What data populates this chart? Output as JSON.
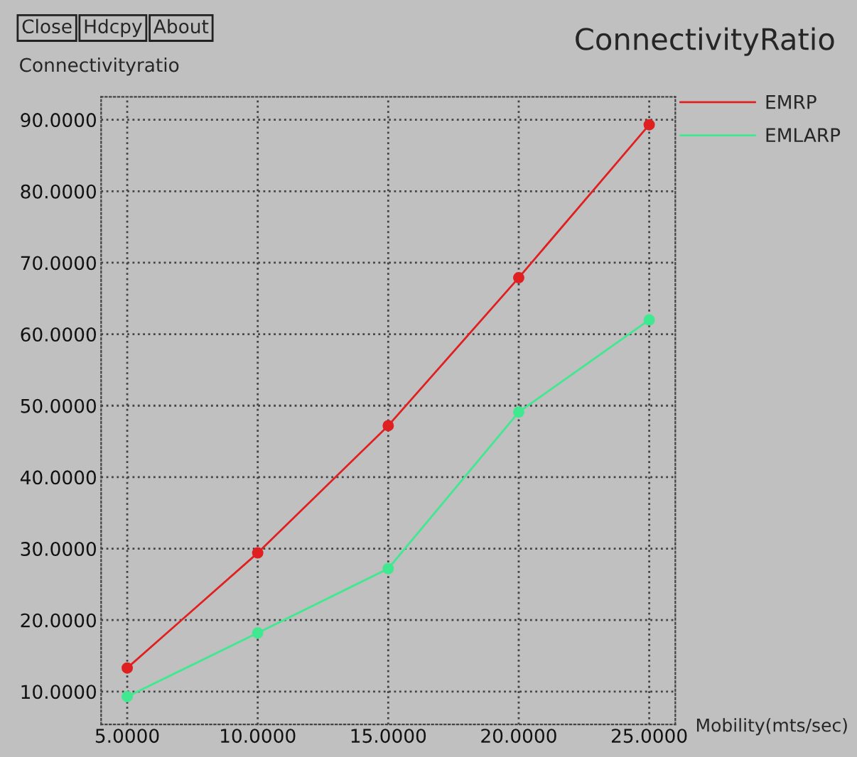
{
  "chart_data": {
    "type": "line",
    "title": "ConnectivityRatio",
    "ylabel": "Connectivityratio",
    "xlabel": "Mobility(mts/sec)",
    "annotations": [
      "Close",
      "Hdcpy",
      "About"
    ],
    "x": [
      5,
      10,
      15,
      20,
      25
    ],
    "series": [
      {
        "name": "EMRP",
        "color": "#e02020",
        "values": [
          13.3,
          29.4,
          47.2,
          67.9,
          89.3
        ]
      },
      {
        "name": "EMLARP",
        "color": "#40e890",
        "values": [
          9.3,
          18.2,
          27.2,
          49.1,
          62.0
        ]
      }
    ],
    "xlim": [
      4.0,
      26.0
    ],
    "ylim": [
      5.4,
      93.2
    ],
    "xticks": [
      {
        "value": 5,
        "label": "5.0000"
      },
      {
        "value": 10,
        "label": "10.0000"
      },
      {
        "value": 15,
        "label": "15.0000"
      },
      {
        "value": 20,
        "label": "20.0000"
      },
      {
        "value": 25,
        "label": "25.0000"
      }
    ],
    "yticks": [
      {
        "value": 10,
        "label": "10.0000"
      },
      {
        "value": 20,
        "label": "20.0000"
      },
      {
        "value": 30,
        "label": "30.0000"
      },
      {
        "value": 40,
        "label": "40.0000"
      },
      {
        "value": 50,
        "label": "50.0000"
      },
      {
        "value": 60,
        "label": "60.0000"
      },
      {
        "value": 70,
        "label": "70.0000"
      },
      {
        "value": 80,
        "label": "80.0000"
      },
      {
        "value": 90,
        "label": "90.0000"
      }
    ],
    "grid": true,
    "legend": "top right",
    "marker": "circle",
    "line_style": "solid"
  }
}
